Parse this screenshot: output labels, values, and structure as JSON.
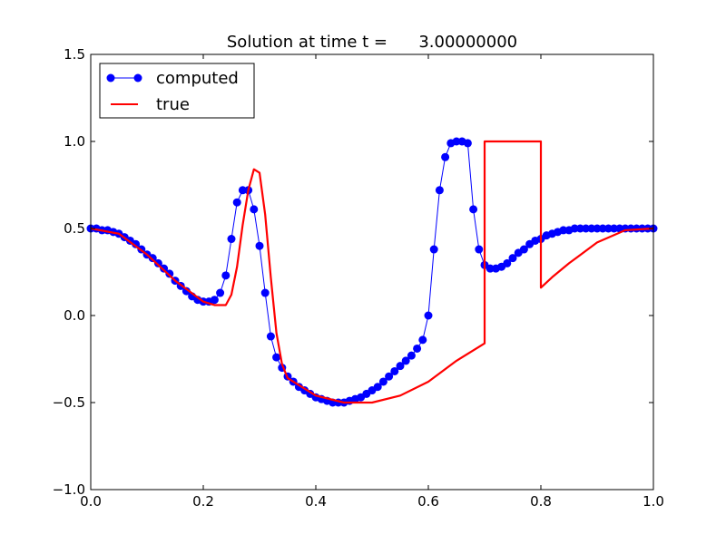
{
  "chart_data": {
    "type": "line",
    "title": "Solution at time t =      3.00000000",
    "xlabel": "",
    "ylabel": "",
    "xlim": [
      0.0,
      1.0
    ],
    "ylim": [
      -1.0,
      1.5
    ],
    "xticks": [
      0.0,
      0.2,
      0.4,
      0.6,
      0.8,
      1.0
    ],
    "xtick_labels": [
      "0.0",
      "0.2",
      "0.4",
      "0.6",
      "0.8",
      "1.0"
    ],
    "yticks": [
      -1.0,
      -0.5,
      0.0,
      0.5,
      1.0,
      1.5
    ],
    "ytick_labels": [
      "−1.0",
      "−0.5",
      "0.0",
      "0.5",
      "1.0",
      "1.5"
    ],
    "grid": false,
    "legend": {
      "placement": "upper-left",
      "entries": [
        "computed",
        "true"
      ]
    },
    "series": [
      {
        "name": "computed",
        "color": "#0000ff",
        "marker": "circle",
        "x": [
          0.0,
          0.01,
          0.02,
          0.03,
          0.04,
          0.05,
          0.06,
          0.07,
          0.08,
          0.09,
          0.1,
          0.11,
          0.12,
          0.13,
          0.14,
          0.15,
          0.16,
          0.17,
          0.18,
          0.19,
          0.2,
          0.21,
          0.22,
          0.23,
          0.24,
          0.25,
          0.26,
          0.27,
          0.28,
          0.29,
          0.3,
          0.31,
          0.32,
          0.33,
          0.34,
          0.35,
          0.36,
          0.37,
          0.38,
          0.39,
          0.4,
          0.41,
          0.42,
          0.43,
          0.44,
          0.45,
          0.46,
          0.47,
          0.48,
          0.49,
          0.5,
          0.51,
          0.52,
          0.53,
          0.54,
          0.55,
          0.56,
          0.57,
          0.58,
          0.59,
          0.6,
          0.61,
          0.62,
          0.63,
          0.64,
          0.65,
          0.66,
          0.67,
          0.68,
          0.69,
          0.7,
          0.71,
          0.72,
          0.73,
          0.74,
          0.75,
          0.76,
          0.77,
          0.78,
          0.79,
          0.8,
          0.81,
          0.82,
          0.83,
          0.84,
          0.85,
          0.86,
          0.87,
          0.88,
          0.89,
          0.9,
          0.91,
          0.92,
          0.93,
          0.94,
          0.95,
          0.96,
          0.97,
          0.98,
          0.99,
          1.0
        ],
        "values": [
          0.5,
          0.5,
          0.49,
          0.49,
          0.48,
          0.47,
          0.45,
          0.43,
          0.41,
          0.38,
          0.35,
          0.33,
          0.3,
          0.27,
          0.24,
          0.2,
          0.17,
          0.14,
          0.11,
          0.09,
          0.08,
          0.08,
          0.09,
          0.13,
          0.23,
          0.44,
          0.65,
          0.72,
          0.72,
          0.61,
          0.4,
          0.13,
          -0.12,
          -0.24,
          -0.3,
          -0.35,
          -0.38,
          -0.41,
          -0.43,
          -0.45,
          -0.47,
          -0.48,
          -0.49,
          -0.5,
          -0.5,
          -0.5,
          -0.49,
          -0.48,
          -0.47,
          -0.45,
          -0.43,
          -0.41,
          -0.38,
          -0.35,
          -0.32,
          -0.29,
          -0.26,
          -0.23,
          -0.19,
          -0.14,
          0.0,
          0.38,
          0.72,
          0.91,
          0.99,
          1.0,
          1.0,
          0.99,
          0.61,
          0.38,
          0.29,
          0.27,
          0.27,
          0.28,
          0.3,
          0.33,
          0.36,
          0.38,
          0.41,
          0.43,
          0.44,
          0.46,
          0.47,
          0.48,
          0.49,
          0.49,
          0.5,
          0.5,
          0.5,
          0.5,
          0.5,
          0.5,
          0.5,
          0.5,
          0.5,
          0.5,
          0.5,
          0.5,
          0.5,
          0.5,
          0.5
        ]
      },
      {
        "name": "true",
        "color": "#ff0000",
        "marker": "none",
        "x": [
          0.0,
          0.05,
          0.1,
          0.15,
          0.2,
          0.22,
          0.24,
          0.25,
          0.26,
          0.27,
          0.28,
          0.29,
          0.3,
          0.31,
          0.32,
          0.33,
          0.34,
          0.35,
          0.4,
          0.45,
          0.5,
          0.55,
          0.6,
          0.65,
          0.7,
          0.7,
          0.8,
          0.8,
          0.82,
          0.85,
          0.9,
          0.95,
          1.0
        ],
        "values": [
          0.5,
          0.47,
          0.35,
          0.2,
          0.08,
          0.06,
          0.06,
          0.12,
          0.28,
          0.52,
          0.72,
          0.84,
          0.82,
          0.58,
          0.22,
          -0.1,
          -0.28,
          -0.36,
          -0.46,
          -0.5,
          -0.5,
          -0.46,
          -0.38,
          -0.26,
          -0.16,
          1.0,
          1.0,
          0.16,
          0.22,
          0.3,
          0.42,
          0.49,
          0.5
        ]
      }
    ]
  }
}
